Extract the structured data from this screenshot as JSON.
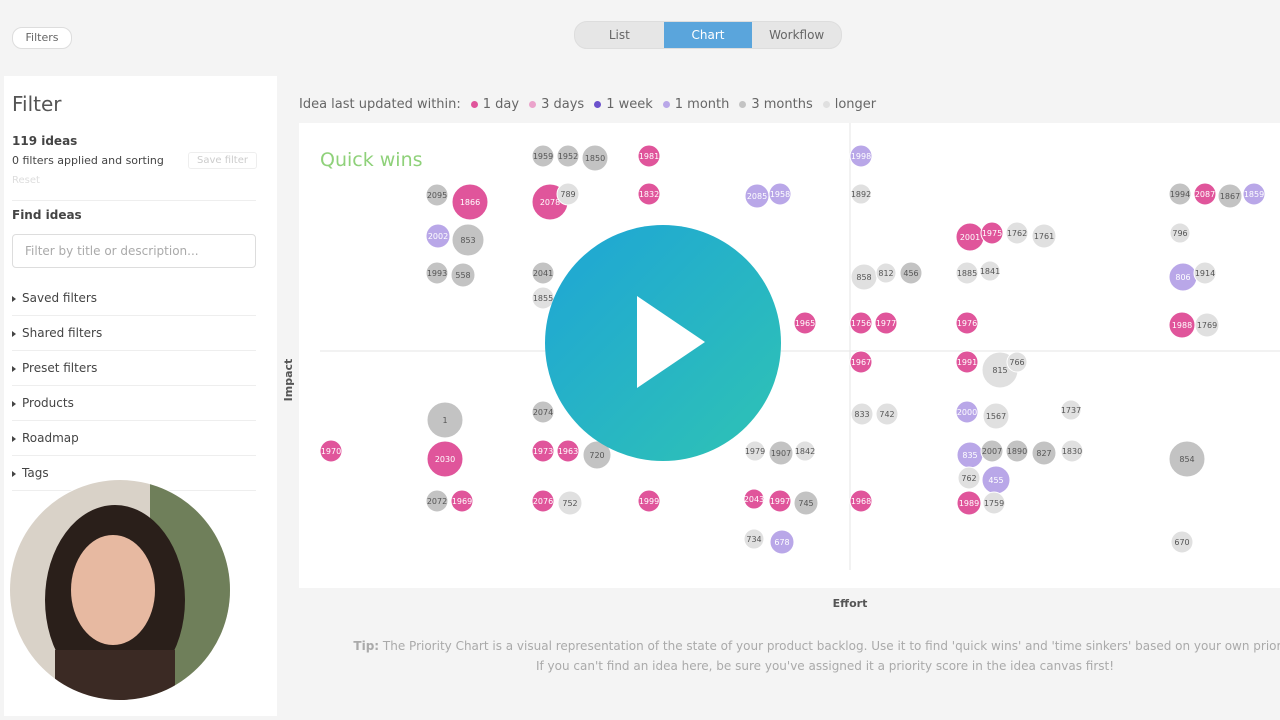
{
  "toolbar": {
    "filters": "Filters",
    "tabs": [
      "List",
      "Chart",
      "Workflow"
    ]
  },
  "sidebar": {
    "title": "Filter",
    "count": "119 ideas",
    "status": "0 filters applied and sorting",
    "save": "Save filter",
    "reset": "Reset",
    "find": "Find ideas",
    "search_placeholder": "Filter by title or description...",
    "sections": [
      "Saved filters",
      "Shared filters",
      "Preset filters",
      "Products",
      "Roadmap",
      "Tags"
    ]
  },
  "legend": {
    "label": "Idea last updated within:",
    "items": [
      {
        "label": "1 day",
        "color": "#e0559b"
      },
      {
        "label": "3 days",
        "color": "#eba3cb"
      },
      {
        "label": "1 week",
        "color": "#6c52cc"
      },
      {
        "label": "1 month",
        "color": "#b9a7e8"
      },
      {
        "label": "3 months",
        "color": "#c3c3c3"
      },
      {
        "label": "longer",
        "color": "#e0e0e0"
      }
    ]
  },
  "chart": {
    "quadrant": "Quick wins",
    "y_axis": "Impact",
    "x_axis": "Effort",
    "bubbles": [
      "1959",
      "1952",
      "1850",
      "1981",
      "1998",
      "2095",
      "1866",
      "2078",
      "789",
      "1832",
      "2085",
      "1958",
      "1892",
      "1994",
      "2087",
      "1867",
      "1859",
      "2002",
      "853",
      "2001",
      "1975",
      "1762",
      "1761",
      "796",
      "1993",
      "558",
      "2041",
      "858",
      "812",
      "456",
      "1885",
      "1841",
      "806",
      "1914",
      "1855",
      "1756",
      "1977",
      "1976",
      "1988",
      "1769",
      "1965",
      "1967",
      "1991",
      "815",
      "766",
      "1",
      "2074",
      "833",
      "742",
      "2000",
      "1567",
      "1737",
      "1970",
      "2030",
      "1973",
      "1963",
      "720",
      "1979",
      "1907",
      "1842",
      "835",
      "2007",
      "1890",
      "827",
      "1830",
      "854",
      "762",
      "455",
      "2072",
      "1969",
      "2076",
      "752",
      "1999",
      "2043",
      "1997",
      "745",
      "1968",
      "1989",
      "1759",
      "734",
      "678",
      "670"
    ]
  },
  "tip": {
    "lead": "Tip:",
    "line1": "The Priority Chart is a visual representation of the state of your product backlog. Use it to find 'quick wins' and 'time sinkers' based on your own priority",
    "line2": "If you can't find an idea here, be sure you've assigned it a priority score in the idea canvas first!"
  }
}
